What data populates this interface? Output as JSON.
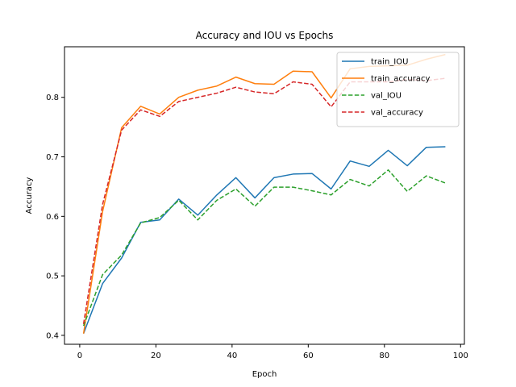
{
  "chart_data": {
    "type": "line",
    "title": "Accuracy and IOU vs Epochs",
    "xlabel": "Epoch",
    "ylabel": "Accuracy",
    "xlim": [
      -4,
      101
    ],
    "ylim": [
      0.385,
      0.885
    ],
    "xticks": [
      0,
      20,
      40,
      60,
      80,
      100
    ],
    "yticks": [
      0.4,
      0.5,
      0.6,
      0.7,
      0.8
    ],
    "grid": false,
    "legend_position": "top-right",
    "x": [
      1,
      6,
      11,
      16,
      21,
      26,
      31,
      36,
      41,
      46,
      51,
      56,
      61,
      66,
      71,
      76,
      81,
      86,
      91,
      96
    ],
    "series": [
      {
        "name": "train_IOU",
        "color": "#1f77b4",
        "style": "solid",
        "values": [
          0.403,
          0.487,
          0.53,
          0.59,
          0.594,
          0.629,
          0.602,
          0.636,
          0.665,
          0.631,
          0.665,
          0.671,
          0.672,
          0.646,
          0.693,
          0.684,
          0.711,
          0.685,
          0.716,
          0.717
        ]
      },
      {
        "name": "train_accuracy",
        "color": "#ff7f0e",
        "style": "solid",
        "values": [
          0.403,
          0.608,
          0.749,
          0.785,
          0.772,
          0.8,
          0.812,
          0.819,
          0.834,
          0.823,
          0.822,
          0.844,
          0.843,
          0.799,
          0.848,
          0.852,
          0.853,
          0.854,
          0.864,
          0.872
        ]
      },
      {
        "name": "val_IOU",
        "color": "#2ca02c",
        "style": "dashed",
        "values": [
          0.416,
          0.502,
          0.535,
          0.589,
          0.598,
          0.627,
          0.594,
          0.627,
          0.646,
          0.617,
          0.649,
          0.649,
          0.643,
          0.636,
          0.662,
          0.651,
          0.678,
          0.642,
          0.668,
          0.656
        ]
      },
      {
        "name": "val_accuracy",
        "color": "#d62728",
        "style": "dashed",
        "values": [
          0.419,
          0.62,
          0.745,
          0.779,
          0.768,
          0.793,
          0.8,
          0.807,
          0.817,
          0.809,
          0.806,
          0.826,
          0.822,
          0.784,
          0.826,
          0.826,
          0.826,
          0.83,
          0.828,
          0.832
        ]
      }
    ]
  }
}
